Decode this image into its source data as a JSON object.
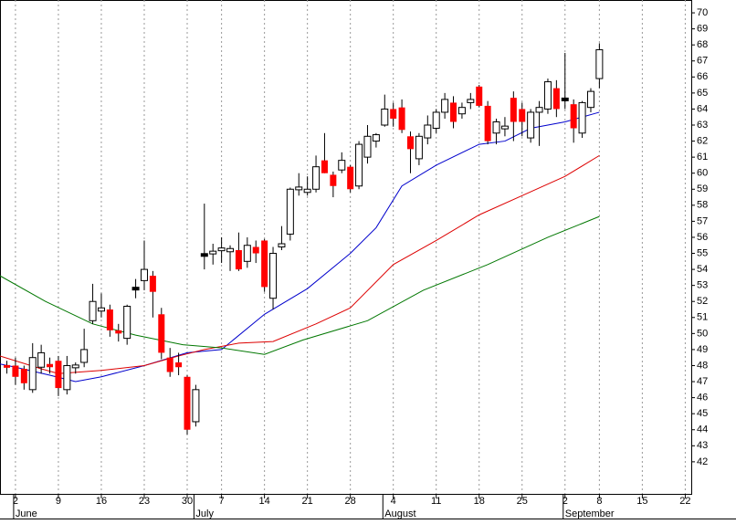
{
  "chart_data": {
    "type": "candlestick",
    "xlim": [
      -1.8,
      78.7
    ],
    "ylim": [
      40,
      70.8
    ],
    "yticks": [
      42,
      43,
      44,
      45,
      46,
      47,
      48,
      49,
      50,
      51,
      52,
      53,
      54,
      55,
      56,
      57,
      58,
      59,
      60,
      61,
      62,
      63,
      64,
      65,
      66,
      67,
      68,
      69,
      70
    ],
    "xticks": [
      {
        "value": 0,
        "label": "2"
      },
      {
        "value": 5,
        "label": "9"
      },
      {
        "value": 10,
        "label": "16"
      },
      {
        "value": 15,
        "label": "23"
      },
      {
        "value": 20,
        "label": "30"
      },
      {
        "value": 24,
        "label": "7"
      },
      {
        "value": 29,
        "label": "14"
      },
      {
        "value": 34,
        "label": "21"
      },
      {
        "value": 39,
        "label": "28"
      },
      {
        "value": 44,
        "label": "4"
      },
      {
        "value": 49,
        "label": "11"
      },
      {
        "value": 54,
        "label": "18"
      },
      {
        "value": 59,
        "label": "25"
      },
      {
        "value": 64,
        "label": "2"
      },
      {
        "value": 68,
        "label": "8"
      },
      {
        "value": 73,
        "label": "15"
      },
      {
        "value": 78,
        "label": "22"
      }
    ],
    "month_ticks": [
      {
        "value": 0,
        "label": "June"
      },
      {
        "value": 21,
        "label": "July"
      },
      {
        "value": 43,
        "label": "August"
      },
      {
        "value": 64,
        "label": "September"
      }
    ],
    "grid": true,
    "up_color": "#ffffff",
    "down_color": "#ff0000",
    "flat_color": "#000000",
    "x": [
      -1,
      0,
      1,
      2,
      3,
      4,
      5,
      6,
      7,
      8,
      9,
      10,
      11,
      12,
      13,
      14,
      15,
      16,
      17,
      18,
      19,
      20,
      21,
      22,
      23,
      24,
      25,
      26,
      27,
      28,
      29,
      30,
      31,
      32,
      33,
      34,
      35,
      36,
      37,
      38,
      39,
      40,
      41,
      42,
      43,
      44,
      45,
      46,
      47,
      48,
      49,
      50,
      51,
      52,
      53,
      54,
      55,
      56,
      57,
      58,
      59,
      60,
      61,
      62,
      63,
      64,
      65,
      66,
      67,
      68
    ],
    "open": [
      48.0,
      48.0,
      47.8,
      46.5,
      47.9,
      48.1,
      48.3,
      46.5,
      47.9,
      48.2,
      50.8,
      51.4,
      51.5,
      50.2,
      49.7,
      52.8,
      53.3,
      53.6,
      51.2,
      48.5,
      48.2,
      47.3,
      44.5,
      54.9,
      55.0,
      55.2,
      55.1,
      55.2,
      54.5,
      55.4,
      55.8,
      52.2,
      55.4,
      56.2,
      59.0,
      58.8,
      59.0,
      60.8,
      59.9,
      60.2,
      60.4,
      59.2,
      61.0,
      62.0,
      63.0,
      64.0,
      64.1,
      62.3,
      60.9,
      62.2,
      62.8,
      63.8,
      64.4,
      63.7,
      64.4,
      65.4,
      64.2,
      62.5,
      62.8,
      64.7,
      64.0,
      62.2,
      63.8,
      64.0,
      65.3,
      64.6,
      64.3,
      62.5,
      64.1,
      65.9
    ],
    "high": [
      48.3,
      48.5,
      48.0,
      49.4,
      49.3,
      48.5,
      48.6,
      48.6,
      48.2,
      50.3,
      53.1,
      52.5,
      51.8,
      50.6,
      51.8,
      53.4,
      55.8,
      53.9,
      51.6,
      49.1,
      48.8,
      47.4,
      46.8,
      58.1,
      55.6,
      56.0,
      55.5,
      56.3,
      56.0,
      55.8,
      55.9,
      55.4,
      56.7,
      59.1,
      60.0,
      59.8,
      61.1,
      62.5,
      60.1,
      61.3,
      60.5,
      62.0,
      63.0,
      62.5,
      64.9,
      64.4,
      64.6,
      62.6,
      62.5,
      63.6,
      64.0,
      65.0,
      64.8,
      64.4,
      65.0,
      65.5,
      64.5,
      63.4,
      63.5,
      65.1,
      64.4,
      64.0,
      64.5,
      65.9,
      65.8,
      67.5,
      64.6,
      64.5,
      65.3,
      68.1
    ],
    "low": [
      47.5,
      46.8,
      46.5,
      46.3,
      47.5,
      47.5,
      46.1,
      46.2,
      47.5,
      47.9,
      50.6,
      51.0,
      49.8,
      49.5,
      49.3,
      52.2,
      52.7,
      51.0,
      48.4,
      47.3,
      47.4,
      43.7,
      44.2,
      54.0,
      54.3,
      54.4,
      53.9,
      53.9,
      54.1,
      54.4,
      52.6,
      51.5,
      55.2,
      55.8,
      58.6,
      58.6,
      58.8,
      60.0,
      58.5,
      60.0,
      58.8,
      59.0,
      60.6,
      61.6,
      62.9,
      62.9,
      62.5,
      60.0,
      60.5,
      61.8,
      62.5,
      63.4,
      62.8,
      63.4,
      64.0,
      64.1,
      61.8,
      61.8,
      62.3,
      62.0,
      62.3,
      61.9,
      61.7,
      63.7,
      63.5,
      64.0,
      61.9,
      62.2,
      63.8,
      65.3
    ],
    "close": [
      47.9,
      47.3,
      46.9,
      48.5,
      48.8,
      47.9,
      46.6,
      48.0,
      48.0,
      49.0,
      52.0,
      51.6,
      50.2,
      50.0,
      51.7,
      52.8,
      54.0,
      52.6,
      48.8,
      47.6,
      47.9,
      44.0,
      46.5,
      54.9,
      55.1,
      55.3,
      55.3,
      54.0,
      55.5,
      55.0,
      52.9,
      55.0,
      55.6,
      59.0,
      59.1,
      59.0,
      60.4,
      60.0,
      59.2,
      60.8,
      59.0,
      61.8,
      62.3,
      62.4,
      64.0,
      63.4,
      62.7,
      61.5,
      62.3,
      63.0,
      63.8,
      64.6,
      63.2,
      64.1,
      64.6,
      64.2,
      62.0,
      63.2,
      62.9,
      63.2,
      63.2,
      63.8,
      64.1,
      65.7,
      64.0,
      64.6,
      62.8,
      64.4,
      65.1,
      67.7
    ],
    "series": [
      {
        "color": "#0000cc",
        "x": [
          -1.8,
          0,
          4,
          7,
          10,
          15,
          20,
          24,
          29,
          34,
          39,
          42,
          45,
          49,
          54,
          57,
          60,
          64,
          68
        ],
        "values": [
          48.1,
          47.9,
          47.4,
          47.0,
          47.3,
          48.0,
          48.8,
          49.0,
          51.2,
          52.8,
          55.0,
          56.6,
          59.2,
          60.5,
          61.8,
          62.0,
          62.8,
          63.2,
          63.8
        ]
      },
      {
        "color": "#dd0000",
        "x": [
          -1.8,
          3,
          5,
          10,
          15,
          19,
          22,
          26,
          30,
          35,
          39,
          44,
          49,
          54,
          59,
          64,
          68
        ],
        "values": [
          48.6,
          47.8,
          47.5,
          47.7,
          48.0,
          48.6,
          49.0,
          49.4,
          49.5,
          50.6,
          51.6,
          54.3,
          55.8,
          57.4,
          58.6,
          59.8,
          61.1
        ]
      },
      {
        "color": "#007700",
        "x": [
          -1.8,
          3.5,
          9,
          14,
          19.5,
          24,
          29,
          33.5,
          41,
          47.5,
          55,
          62,
          68
        ],
        "values": [
          53.6,
          52.0,
          50.6,
          49.9,
          49.3,
          49.1,
          48.7,
          49.6,
          50.8,
          52.7,
          54.3,
          56.0,
          57.3
        ]
      }
    ]
  }
}
